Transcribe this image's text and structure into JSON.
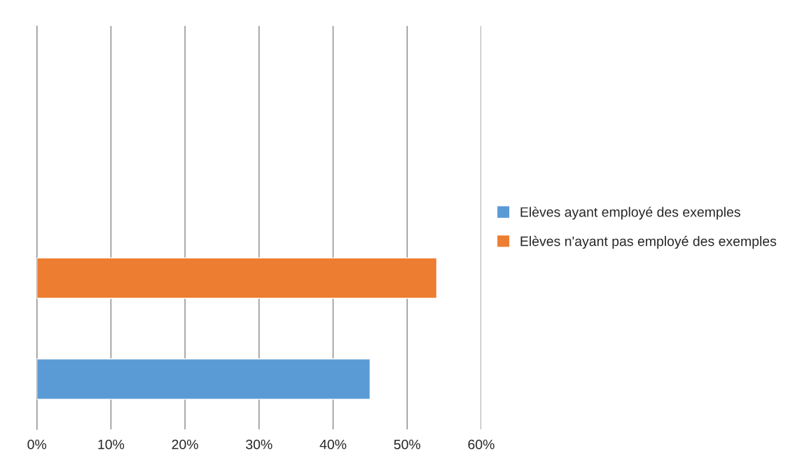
{
  "chart_data": {
    "type": "bar",
    "orientation": "horizontal",
    "categories": [
      null,
      null,
      null,
      null
    ],
    "series": [
      {
        "name": "Elèves ayant employé des exemples",
        "color": "#5b9bd5",
        "values": [
          null,
          null,
          null,
          45
        ]
      },
      {
        "name": "Elèves n'ayant pas employé des exemples",
        "color": "#ed7d31",
        "values": [
          null,
          null,
          54,
          null
        ]
      }
    ],
    "xlim": [
      0,
      60
    ],
    "xticks": [
      {
        "value": 0,
        "label": "0%"
      },
      {
        "value": 10,
        "label": "10%"
      },
      {
        "value": 20,
        "label": "20%"
      },
      {
        "value": 30,
        "label": "30%"
      },
      {
        "value": 40,
        "label": "40%"
      },
      {
        "value": 50,
        "label": "50%"
      },
      {
        "value": 60,
        "label": "60%"
      }
    ],
    "grid": "x",
    "legend": "right",
    "tick_labels": "x"
  }
}
